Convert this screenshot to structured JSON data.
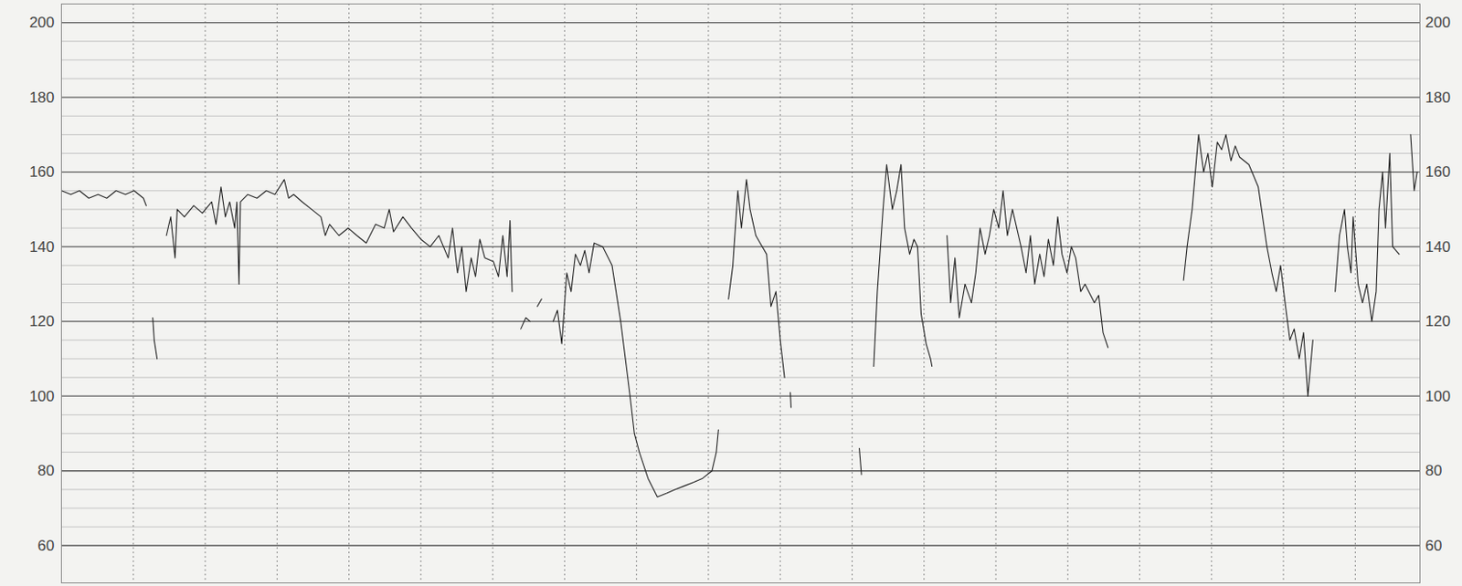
{
  "chart_data": {
    "type": "line",
    "color": "#222222",
    "grid": true,
    "tick_labels": "y",
    "xlim": [
      0,
      18.9
    ],
    "xticks": [
      0,
      1,
      2,
      3,
      4,
      5,
      6,
      7,
      8,
      9,
      10,
      11,
      12,
      13,
      14,
      15,
      16,
      17,
      18
    ],
    "ylim": [
      50,
      205
    ],
    "yticks": [
      60,
      80,
      100,
      120,
      140,
      160,
      180,
      200
    ],
    "x": [
      0,
      0.13,
      0.25,
      0.38,
      0.51,
      0.63,
      0.76,
      0.89,
      1.01,
      1.14,
      1.18,
      1.22,
      1.27,
      1.29,
      1.33,
      1.4,
      1.46,
      1.52,
      1.58,
      1.61,
      1.71,
      1.84,
      1.96,
      2.09,
      2.15,
      2.22,
      2.28,
      2.34,
      2.41,
      2.44,
      2.47,
      2.49,
      2.59,
      2.72,
      2.85,
      2.97,
      3.1,
      3.16,
      3.23,
      3.35,
      3.48,
      3.61,
      3.67,
      3.73,
      3.86,
      3.99,
      4.11,
      4.24,
      4.37,
      4.49,
      4.56,
      4.62,
      4.75,
      4.87,
      5.0,
      5.13,
      5.25,
      5.38,
      5.44,
      5.51,
      5.57,
      5.63,
      5.7,
      5.76,
      5.82,
      5.89,
      6.01,
      6.08,
      6.14,
      6.2,
      6.24,
      6.27,
      6.33,
      6.39,
      6.46,
      6.52,
      6.57,
      6.62,
      6.68,
      6.76,
      6.84,
      6.9,
      6.96,
      7.03,
      7.09,
      7.15,
      7.22,
      7.28,
      7.34,
      7.41,
      7.53,
      7.66,
      7.78,
      7.91,
      7.97,
      8.04,
      8.16,
      8.29,
      8.42,
      8.54,
      8.67,
      8.8,
      8.92,
      9.05,
      9.11,
      9.14,
      9.21,
      9.28,
      9.34,
      9.41,
      9.46,
      9.53,
      9.58,
      9.66,
      9.75,
      9.81,
      9.87,
      9.94,
      10.0,
      10.06,
      10.1,
      10.14,
      10.15,
      10.6,
      11.1,
      11.13,
      11.21,
      11.3,
      11.35,
      11.43,
      11.48,
      11.56,
      11.62,
      11.68,
      11.73,
      11.8,
      11.86,
      11.91,
      11.96,
      12.03,
      12.09,
      12.11,
      12.2,
      12.32,
      12.37,
      12.43,
      12.49,
      12.57,
      12.66,
      12.72,
      12.78,
      12.85,
      12.91,
      12.97,
      13.04,
      13.1,
      13.16,
      13.23,
      13.29,
      13.35,
      13.42,
      13.48,
      13.54,
      13.61,
      13.67,
      13.73,
      13.8,
      13.86,
      13.92,
      13.99,
      14.05,
      14.11,
      14.18,
      14.24,
      14.37,
      14.43,
      14.49,
      14.56,
      15.1,
      15.61,
      15.66,
      15.73,
      15.82,
      15.89,
      15.95,
      16.01,
      16.08,
      16.14,
      16.2,
      16.27,
      16.33,
      16.39,
      16.52,
      16.65,
      16.71,
      16.77,
      16.84,
      16.9,
      16.96,
      17.03,
      17.09,
      17.15,
      17.22,
      17.28,
      17.34,
      17.41,
      17.55,
      17.72,
      17.78,
      17.85,
      17.89,
      17.94,
      17.97,
      18.04,
      18.1,
      18.16,
      18.23,
      18.29,
      18.33,
      18.38,
      18.42,
      18.48,
      18.52,
      18.61,
      18.7,
      18.77,
      18.82,
      18.86
    ],
    "values": [
      155,
      154,
      155,
      153,
      154,
      153,
      155,
      154,
      155,
      153,
      151,
      null,
      121,
      115,
      110,
      null,
      143,
      148,
      137,
      150,
      148,
      151,
      149,
      152,
      146,
      156,
      148,
      152,
      145,
      152,
      130,
      152,
      154,
      153,
      155,
      154,
      158,
      153,
      154,
      152,
      150,
      148,
      143,
      146,
      143,
      145,
      143,
      141,
      146,
      145,
      150,
      144,
      148,
      145,
      142,
      140,
      143,
      137,
      145,
      133,
      140,
      128,
      137,
      132,
      142,
      137,
      136,
      132,
      143,
      132,
      147,
      128,
      null,
      118,
      121,
      120,
      null,
      124,
      126,
      null,
      120,
      123,
      114,
      133,
      128,
      138,
      135,
      139,
      133,
      141,
      140,
      135,
      120,
      100,
      90,
      85,
      78,
      73,
      74,
      75,
      76,
      77,
      78,
      80,
      85,
      91,
      null,
      126,
      135,
      155,
      145,
      158,
      150,
      143,
      140,
      138,
      124,
      128,
      115,
      105,
      null,
      101,
      97,
      null,
      86,
      79,
      null,
      108,
      128,
      150,
      162,
      150,
      155,
      162,
      145,
      138,
      142,
      140,
      122,
      114,
      110,
      108,
      null,
      143,
      125,
      137,
      121,
      130,
      125,
      133,
      145,
      138,
      143,
      150,
      145,
      155,
      143,
      150,
      145,
      140,
      133,
      143,
      130,
      138,
      132,
      142,
      135,
      148,
      138,
      133,
      140,
      137,
      128,
      130,
      125,
      127,
      117,
      113,
      null,
      131,
      140,
      150,
      170,
      160,
      165,
      156,
      168,
      166,
      170,
      163,
      167,
      164,
      162,
      156,
      148,
      140,
      133,
      128,
      135,
      124,
      115,
      118,
      110,
      117,
      100,
      115,
      null,
      128,
      143,
      150,
      140,
      133,
      148,
      130,
      125,
      130,
      120,
      128,
      150,
      160,
      145,
      165,
      140,
      138,
      null,
      170,
      155,
      160
    ]
  }
}
